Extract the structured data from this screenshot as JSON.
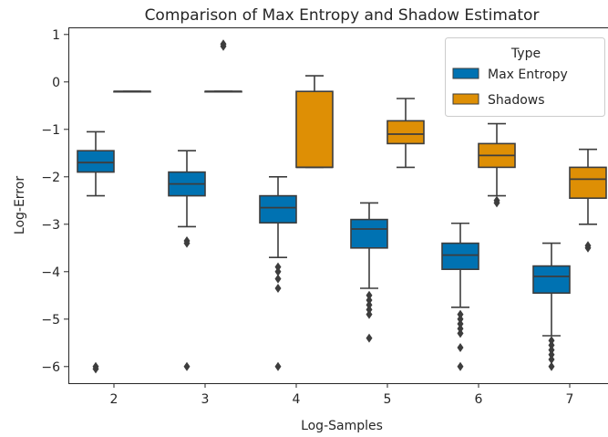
{
  "chart_data": {
    "type": "box",
    "title": "Comparison of Max Entropy and Shadow Estimator",
    "xlabel": "Log-Samples",
    "ylabel": "Log-Error",
    "categories": [
      "2",
      "3",
      "4",
      "5",
      "6",
      "7"
    ],
    "yticks": [
      "1",
      "0",
      "−1",
      "−2",
      "−3",
      "−4",
      "−5",
      "−6"
    ],
    "ylim": [
      -6.35,
      1.15
    ],
    "grid": false,
    "legend": {
      "title": "Type",
      "placement": "top-right"
    },
    "series": [
      {
        "name": "Max Entropy",
        "color": "#0072b2",
        "boxes": [
          {
            "category": "2",
            "whisker_low": -2.4,
            "q1": -1.9,
            "median": -1.7,
            "q3": -1.45,
            "whisker_high": -1.05,
            "outliers": [
              -6.0,
              -6.05
            ]
          },
          {
            "category": "3",
            "whisker_low": -3.05,
            "q1": -2.4,
            "median": -2.15,
            "q3": -1.9,
            "whisker_high": -1.45,
            "outliers": [
              -3.35,
              -3.4,
              -6.0
            ]
          },
          {
            "category": "4",
            "whisker_low": -3.7,
            "q1": -2.97,
            "median": -2.65,
            "q3": -2.4,
            "whisker_high": -2.0,
            "outliers": [
              -3.9,
              -4.0,
              -4.15,
              -4.35,
              -6.0
            ]
          },
          {
            "category": "5",
            "whisker_low": -4.35,
            "q1": -3.5,
            "median": -3.1,
            "q3": -2.9,
            "whisker_high": -2.55,
            "outliers": [
              -4.5,
              -4.6,
              -4.7,
              -4.8,
              -4.9,
              -5.4
            ]
          },
          {
            "category": "6",
            "whisker_low": -4.75,
            "q1": -3.95,
            "median": -3.65,
            "q3": -3.4,
            "whisker_high": -2.98,
            "outliers": [
              -4.9,
              -5.0,
              -5.1,
              -5.2,
              -5.3,
              -5.6,
              -6.0
            ]
          },
          {
            "category": "7",
            "whisker_low": -5.35,
            "q1": -4.45,
            "median": -4.1,
            "q3": -3.88,
            "whisker_high": -3.4,
            "outliers": [
              -5.45,
              -5.55,
              -5.65,
              -5.75,
              -5.85,
              -6.0
            ]
          }
        ]
      },
      {
        "name": "Shadows",
        "color": "#de8f05",
        "boxes": [
          {
            "category": "2",
            "whisker_low": -0.2,
            "q1": -0.2,
            "median": -0.2,
            "q3": -0.2,
            "whisker_high": -0.2,
            "outliers": []
          },
          {
            "category": "3",
            "whisker_low": -0.2,
            "q1": -0.2,
            "median": -0.2,
            "q3": -0.2,
            "whisker_high": -0.2,
            "outliers": [
              0.8,
              0.75
            ]
          },
          {
            "category": "4",
            "whisker_low": -1.8,
            "q1": -1.8,
            "median": -1.8,
            "q3": -0.2,
            "whisker_high": 0.13,
            "outliers": []
          },
          {
            "category": "5",
            "whisker_low": -1.8,
            "q1": -1.3,
            "median": -1.1,
            "q3": -0.82,
            "whisker_high": -0.35,
            "outliers": []
          },
          {
            "category": "6",
            "whisker_low": -2.4,
            "q1": -1.8,
            "median": -1.55,
            "q3": -1.3,
            "whisker_high": -0.88,
            "outliers": [
              -2.5,
              -2.55
            ]
          },
          {
            "category": "7",
            "whisker_low": -3.0,
            "q1": -2.45,
            "median": -2.05,
            "q3": -1.8,
            "whisker_high": -1.42,
            "outliers": [
              -3.45,
              -3.5
            ]
          }
        ]
      }
    ]
  }
}
